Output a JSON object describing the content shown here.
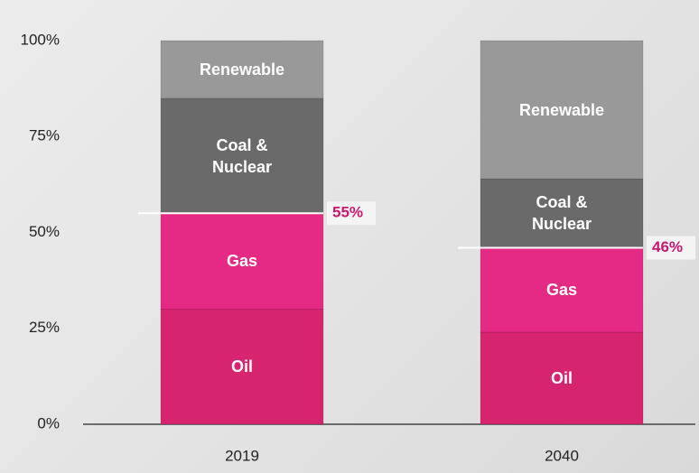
{
  "chart_data": {
    "type": "stacked_bar",
    "categories": [
      "2019",
      "2040"
    ],
    "series": [
      {
        "name": "Oil",
        "color": "#d6246f",
        "values": [
          30,
          24
        ]
      },
      {
        "name": "Gas",
        "color": "#e52a86",
        "values": [
          25,
          22
        ]
      },
      {
        "name": "Coal & Nuclear",
        "color": "#6a6a6a",
        "values": [
          30,
          18
        ]
      },
      {
        "name": "Renewable",
        "color": "#999999",
        "values": [
          15,
          36
        ]
      }
    ],
    "annotations": [
      {
        "category": 0,
        "value": 55,
        "label": "55%"
      },
      {
        "category": 1,
        "value": 46,
        "label": "46%"
      }
    ],
    "annotation_color": "#c8176e",
    "ylim": [
      0,
      100
    ],
    "yticks": [
      {
        "value": 0,
        "label": "0%"
      },
      {
        "value": 25,
        "label": "25%"
      },
      {
        "value": 50,
        "label": "50%"
      },
      {
        "value": 75,
        "label": "75%"
      },
      {
        "value": 100,
        "label": "100%"
      }
    ],
    "grid": false
  }
}
